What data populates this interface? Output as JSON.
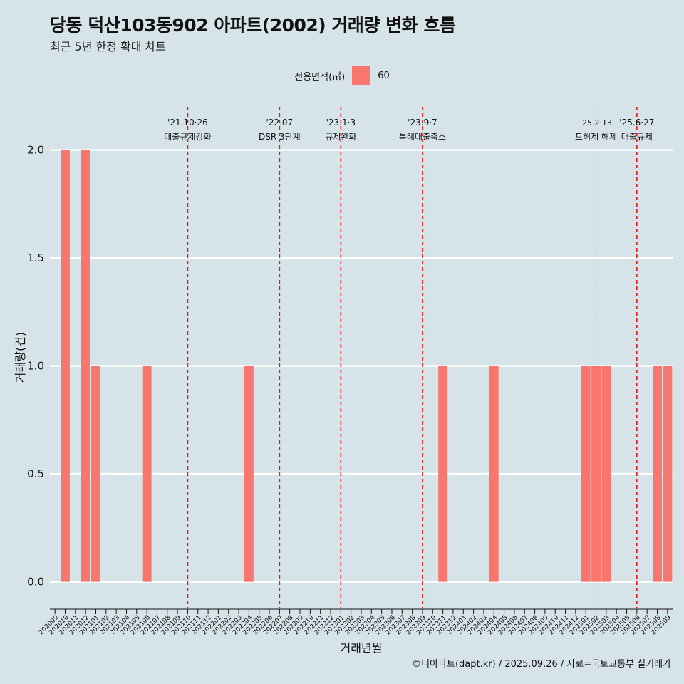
{
  "title": "당동 덕산103동902 아파트(2002) 거래량 변화 흐름",
  "subtitle": "최근 5년 한정 확대 차트",
  "legend": {
    "title": "전용면적(㎡)",
    "item": "60",
    "color": "#f8766d"
  },
  "caption": "©디아파트(dapt.kr) / 2025.09.26 / 자료=국토교통부 실거래가",
  "chart_data": {
    "type": "bar",
    "xlabel": "거래년월",
    "ylabel": "거래량(건)",
    "ylim": [
      -0.12,
      2.2
    ],
    "yticks": [
      0.0,
      0.5,
      1.0,
      1.5,
      2.0
    ],
    "ytick_labels": [
      "0.0",
      "0.5",
      "1.0",
      "1.5",
      "2.0"
    ],
    "categories": [
      "202009",
      "202010",
      "202011",
      "202012",
      "202101",
      "202102",
      "202103",
      "202104",
      "202105",
      "202106",
      "202107",
      "202108",
      "202109",
      "202110",
      "202111",
      "202112",
      "202201",
      "202202",
      "202203",
      "202204",
      "202205",
      "202206",
      "202207",
      "202208",
      "202209",
      "202210",
      "202211",
      "202212",
      "202301",
      "202302",
      "202303",
      "202304",
      "202305",
      "202306",
      "202307",
      "202308",
      "202309",
      "202310",
      "202311",
      "202312",
      "202401",
      "202402",
      "202403",
      "202404",
      "202405",
      "202406",
      "202407",
      "202408",
      "202409",
      "202410",
      "202411",
      "202412",
      "202501",
      "202502",
      "202503",
      "202504",
      "202505",
      "202506",
      "202507",
      "202508",
      "202509"
    ],
    "series": [
      {
        "name": "60",
        "values": [
          0,
          2,
          0,
          2,
          1,
          0,
          0,
          0,
          0,
          1,
          0,
          0,
          0,
          0,
          0,
          0,
          0,
          0,
          0,
          1,
          0,
          0,
          0,
          0,
          0,
          0,
          0,
          0,
          0,
          0,
          0,
          0,
          0,
          0,
          0,
          0,
          0,
          0,
          1,
          0,
          0,
          0,
          0,
          1,
          0,
          0,
          0,
          0,
          0,
          0,
          0,
          0,
          1,
          1,
          1,
          0,
          0,
          0,
          0,
          1,
          1
        ]
      }
    ],
    "annotations": [
      {
        "x": "202110",
        "line1": "'21.10·26",
        "line2": "대출규제강화"
      },
      {
        "x": "202207",
        "line1": "'22.07",
        "line2": "DSR 3단계"
      },
      {
        "x": "202301",
        "line1": "'23.1·3",
        "line2": "규제완화"
      },
      {
        "x": "202309",
        "line1": "'23.9·7",
        "line2": "특례대출축소"
      },
      {
        "x": "202502",
        "line1": "'25.2·13",
        "line2": "토허제 해제"
      },
      {
        "x": "202506",
        "line1": "'25.6·27",
        "line2": "대출규제"
      }
    ]
  }
}
